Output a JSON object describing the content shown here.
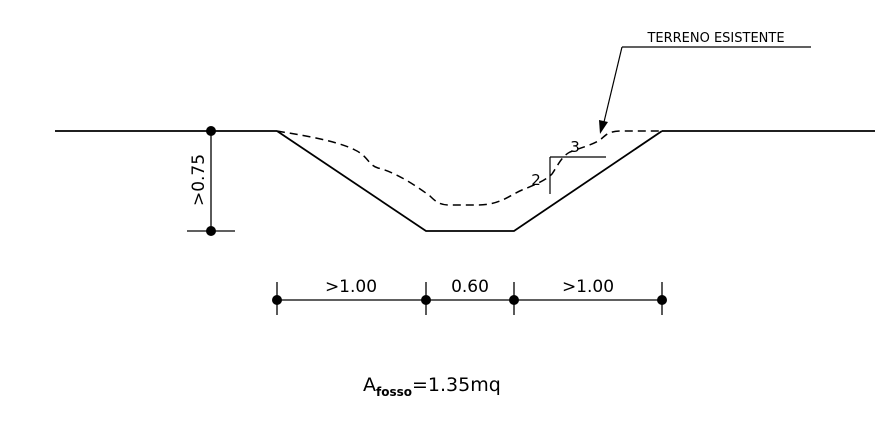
{
  "colors": {
    "background": "#ffffff",
    "line": "#000000"
  },
  "labels": {
    "existing_ground": "TERRENO ESISTENTE",
    "depth": ">0.75",
    "left_bank_width": ">1.00",
    "bottom_width": "0.60",
    "right_bank_width": ">1.00",
    "slope_run": "3",
    "slope_rise": "2"
  },
  "area": {
    "symbol": "A",
    "subscript": "fosso",
    "value": "=1.35mq"
  }
}
